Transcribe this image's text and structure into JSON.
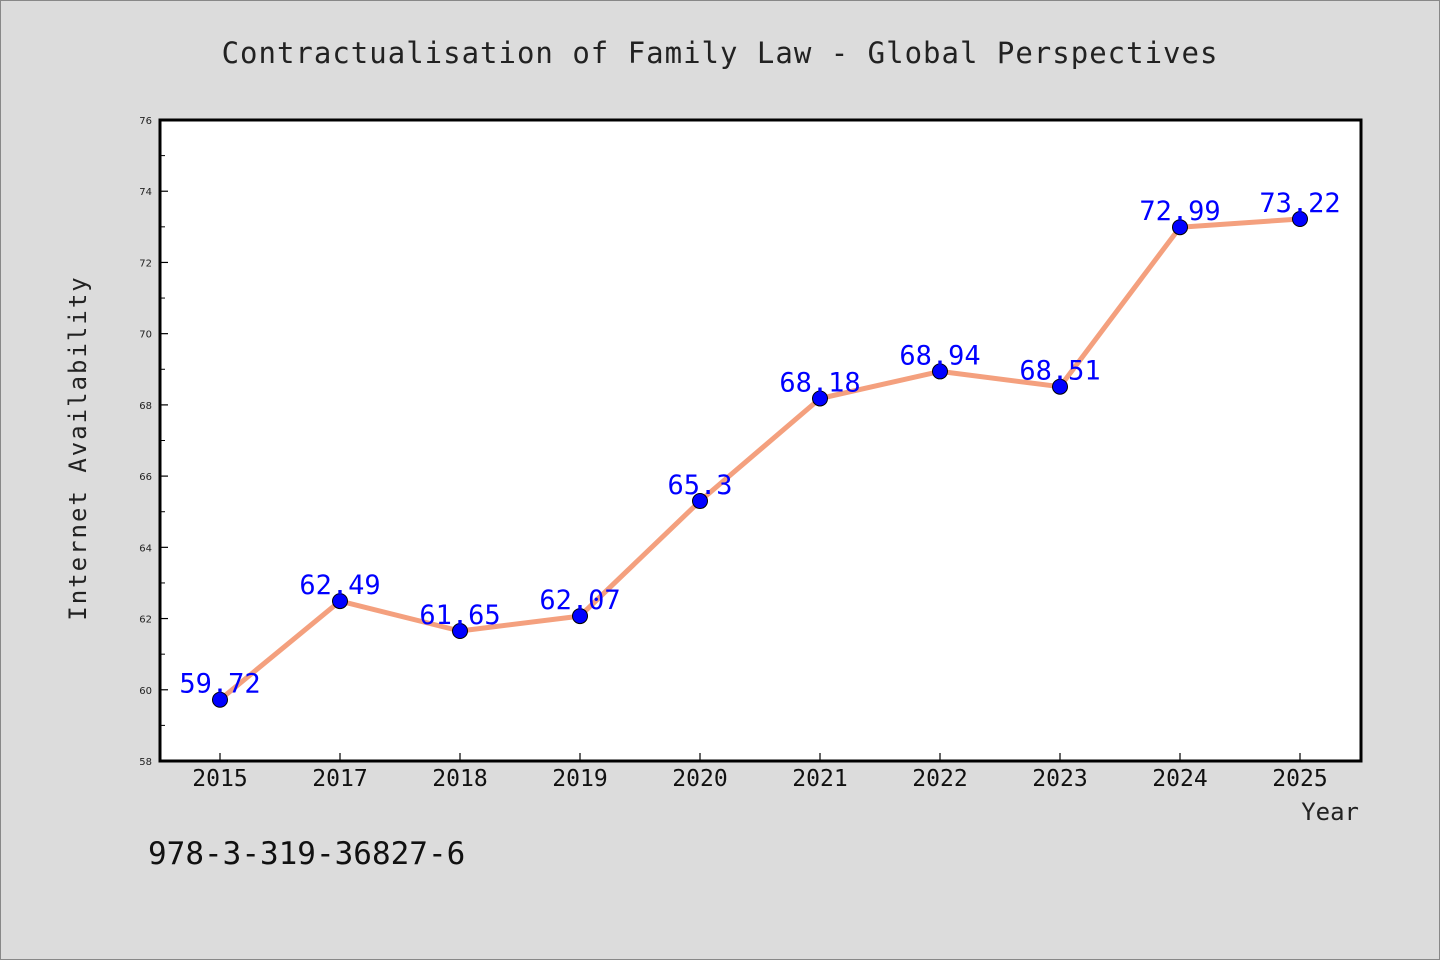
{
  "colors": {
    "background": "#dcdcdc",
    "plot_background": "#ffffff",
    "line": "#f4a07e",
    "marker": "#0000ff",
    "value_label": "#0000ff",
    "axis": "#000000"
  },
  "identifier": "978-3-319-36827-6",
  "chart_data": {
    "type": "line",
    "title": "Contractualisation of Family Law - Global Perspectives",
    "xlabel": "Year",
    "ylabel": "Internet Availability",
    "categories": [
      "2015",
      "2017",
      "2018",
      "2019",
      "2020",
      "2021",
      "2022",
      "2023",
      "2024",
      "2025"
    ],
    "series": [
      {
        "values": [
          59.72,
          62.49,
          61.65,
          62.07,
          65.3,
          68.18,
          68.94,
          68.51,
          72.99,
          73.22
        ]
      }
    ],
    "value_labels": [
      "59.72",
      "62.49",
      "61.65",
      "62.07",
      "65.3",
      "68.18",
      "68.94",
      "68.51",
      "72.99",
      "73.22"
    ],
    "ylim": [
      58,
      76
    ],
    "yticks": [
      58,
      60,
      62,
      64,
      66,
      68,
      70,
      72,
      74,
      76
    ],
    "grid": false,
    "legend": "none"
  }
}
